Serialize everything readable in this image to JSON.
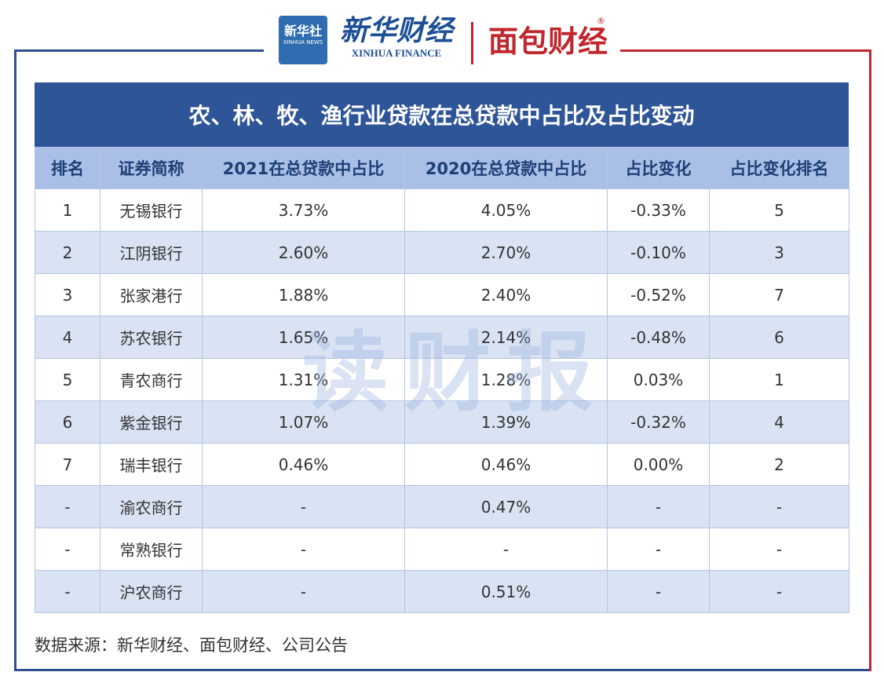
{
  "header": {
    "logo1_cn": "新华社",
    "logo1_en": "XINHUA NEWS",
    "logo2_cn": "新华财经",
    "logo2_en": "XINHUA FINANCE",
    "logo3": "面包财经",
    "registered": "®"
  },
  "table": {
    "title": "农、林、牧、渔行业贷款在总贷款中占比及占比变动",
    "columns": [
      "排名",
      "证券简称",
      "2021在总贷款中占比",
      "2020在总贷款中占比",
      "占比变化",
      "占比变化排名"
    ],
    "rows": [
      [
        "1",
        "无锡银行",
        "3.73%",
        "4.05%",
        "-0.33%",
        "5"
      ],
      [
        "2",
        "江阴银行",
        "2.60%",
        "2.70%",
        "-0.10%",
        "3"
      ],
      [
        "3",
        "张家港行",
        "1.88%",
        "2.40%",
        "-0.52%",
        "7"
      ],
      [
        "4",
        "苏农银行",
        "1.65%",
        "2.14%",
        "-0.48%",
        "6"
      ],
      [
        "5",
        "青农商行",
        "1.31%",
        "1.28%",
        "0.03%",
        "1"
      ],
      [
        "6",
        "紫金银行",
        "1.07%",
        "1.39%",
        "-0.32%",
        "4"
      ],
      [
        "7",
        "瑞丰银行",
        "0.46%",
        "0.46%",
        "0.00%",
        "2"
      ],
      [
        "-",
        "渝农商行",
        "-",
        "0.47%",
        "-",
        "-"
      ],
      [
        "-",
        "常熟银行",
        "-",
        "-",
        "-",
        "-"
      ],
      [
        "-",
        "沪农商行",
        "-",
        "0.51%",
        "-",
        "-"
      ]
    ]
  },
  "watermark": "读财报",
  "source": "数据来源：新华财经、面包财经、公司公告"
}
